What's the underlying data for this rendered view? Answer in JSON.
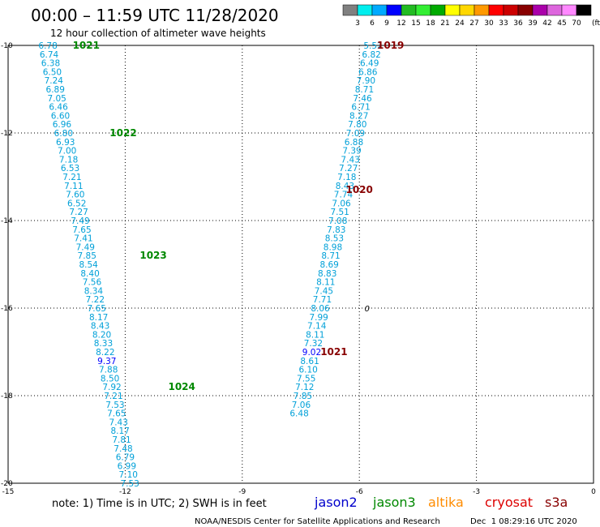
{
  "chart_data": {
    "type": "scatter",
    "title": "00:00 – 11:59 UTC 11/28/2020",
    "subtitle": "12 hour collection of altimeter wave heights",
    "xlim": [
      -15,
      0
    ],
    "ylim": [
      -20,
      -10
    ],
    "xticks": [
      -15,
      -12,
      -9,
      -6,
      -3,
      0
    ],
    "xtick_labels": [
      "-15",
      "-12",
      "-9",
      "-6",
      "-3",
      "0"
    ],
    "yticks": [
      -10,
      -12,
      -14,
      -16,
      -18,
      -20
    ],
    "ytick_labels": [
      "-10",
      "-12",
      "-14",
      "-16",
      "-18",
      "-20"
    ],
    "grid": true,
    "colorbar": {
      "ticks": [
        "3",
        "6",
        "9",
        "12",
        "15",
        "18",
        "21",
        "24",
        "27",
        "30",
        "33",
        "36",
        "39",
        "42",
        "45",
        "70"
      ],
      "unit": "(ft)",
      "colors": [
        "#808080",
        "#00eeee",
        "#00aaff",
        "#0000ff",
        "#22bb22",
        "#33ee33",
        "#00aa00",
        "#ffff00",
        "#ffd700",
        "#ff9900",
        "#ff0000",
        "#cc0000",
        "#880000",
        "#aa00aa",
        "#dd66dd",
        "#ff88ff",
        "#000000"
      ]
    },
    "legend": [
      {
        "name": "jason2",
        "color": "#0000cc"
      },
      {
        "name": "jason3",
        "color": "#008800"
      },
      {
        "name": "altika",
        "color": "#ff8c00"
      },
      {
        "name": "cryosat",
        "color": "#dd0000"
      },
      {
        "name": "s3a",
        "color": "#880000"
      }
    ],
    "note": "note: 1) Time is in UTC; 2) SWH is in feet",
    "credit": "NOAA/NESDIS Center for Satellite Applications and Research",
    "timestamp": "Dec  1 08:29:16 UTC 2020",
    "series": [
      {
        "name": "jason3",
        "color": "#008800",
        "points": [
          {
            "x": -13.98,
            "y": -10.0,
            "label": "6.78"
          },
          {
            "x": -13.95,
            "y": -10.2,
            "label": "6.74"
          },
          {
            "x": -13.91,
            "y": -10.4,
            "label": "6.38"
          },
          {
            "x": -13.87,
            "y": -10.6,
            "label": "6.50"
          },
          {
            "x": -13.83,
            "y": -10.8,
            "label": "7.24"
          },
          {
            "x": -13.79,
            "y": -11.0,
            "label": "6.89"
          },
          {
            "x": -13.75,
            "y": -11.2,
            "label": "7.05"
          },
          {
            "x": -13.71,
            "y": -11.4,
            "label": "6.46"
          },
          {
            "x": -13.66,
            "y": -11.6,
            "label": "6.60"
          },
          {
            "x": -13.62,
            "y": -11.8,
            "label": "6.96"
          },
          {
            "x": -13.58,
            "y": -12.0,
            "label": "6.80"
          },
          {
            "x": -13.53,
            "y": -12.2,
            "label": "6.93"
          },
          {
            "x": -13.49,
            "y": -12.4,
            "label": "7.00"
          },
          {
            "x": -13.45,
            "y": -12.6,
            "label": "7.18"
          },
          {
            "x": -13.41,
            "y": -12.8,
            "label": "6.53"
          },
          {
            "x": -13.36,
            "y": -13.0,
            "label": "7.21"
          },
          {
            "x": -13.32,
            "y": -13.2,
            "label": "7.11"
          },
          {
            "x": -13.28,
            "y": -13.4,
            "label": "7.60"
          },
          {
            "x": -13.24,
            "y": -13.6,
            "label": "6.52"
          },
          {
            "x": -13.19,
            "y": -13.8,
            "label": "7.27"
          },
          {
            "x": -13.15,
            "y": -14.0,
            "label": "7.49"
          },
          {
            "x": -13.11,
            "y": -14.2,
            "label": "7.65"
          },
          {
            "x": -13.07,
            "y": -14.4,
            "label": "7.41"
          },
          {
            "x": -13.02,
            "y": -14.6,
            "label": "7.49"
          },
          {
            "x": -12.98,
            "y": -14.8,
            "label": "7.85"
          },
          {
            "x": -12.94,
            "y": -15.0,
            "label": "8.54"
          },
          {
            "x": -12.9,
            "y": -15.2,
            "label": "8.40"
          },
          {
            "x": -12.85,
            "y": -15.4,
            "label": "7.56"
          },
          {
            "x": -12.81,
            "y": -15.6,
            "label": "8.34"
          },
          {
            "x": -12.77,
            "y": -15.8,
            "label": "7.22"
          },
          {
            "x": -12.73,
            "y": -16.0,
            "label": "7.65"
          },
          {
            "x": -12.68,
            "y": -16.2,
            "label": "8.17"
          },
          {
            "x": -12.64,
            "y": -16.4,
            "label": "8.43"
          },
          {
            "x": -12.6,
            "y": -16.6,
            "label": "8.20"
          },
          {
            "x": -12.56,
            "y": -16.8,
            "label": "8.33"
          },
          {
            "x": -12.51,
            "y": -17.0,
            "label": "8.22"
          },
          {
            "x": -12.47,
            "y": -17.2,
            "label": "9.37",
            "color": "#0000ff"
          },
          {
            "x": -12.43,
            "y": -17.4,
            "label": "7.88"
          },
          {
            "x": -12.39,
            "y": -17.6,
            "label": "8.50"
          },
          {
            "x": -12.34,
            "y": -17.8,
            "label": "7.92"
          },
          {
            "x": -12.3,
            "y": -18.0,
            "label": "7.21"
          },
          {
            "x": -12.26,
            "y": -18.2,
            "label": "7.53"
          },
          {
            "x": -12.22,
            "y": -18.4,
            "label": "7.65"
          },
          {
            "x": -12.17,
            "y": -18.6,
            "label": "7.43"
          },
          {
            "x": -12.13,
            "y": -18.8,
            "label": "8.17"
          },
          {
            "x": -12.09,
            "y": -19.0,
            "label": "7.81"
          },
          {
            "x": -12.05,
            "y": -19.2,
            "label": "7.48"
          },
          {
            "x": -12.0,
            "y": -19.4,
            "label": "6.79"
          },
          {
            "x": -11.96,
            "y": -19.6,
            "label": "6.99"
          },
          {
            "x": -11.92,
            "y": -19.8,
            "label": "7.10"
          },
          {
            "x": -11.88,
            "y": -20.0,
            "label": "7.53"
          }
        ],
        "pressure_labels": [
          {
            "x": -13.0,
            "y": -10.0,
            "label": "1021"
          },
          {
            "x": -12.05,
            "y": -12.0,
            "label": "1022"
          },
          {
            "x": -11.28,
            "y": -14.8,
            "label": "1023"
          },
          {
            "x": -10.55,
            "y": -17.8,
            "label": "1024"
          }
        ]
      },
      {
        "name": "s3a",
        "color": "#880000",
        "points": [
          {
            "x": -5.65,
            "y": -10.0,
            "label": "5.52"
          },
          {
            "x": -5.69,
            "y": -10.2,
            "label": "6.82"
          },
          {
            "x": -5.74,
            "y": -10.4,
            "label": "6.49"
          },
          {
            "x": -5.78,
            "y": -10.6,
            "label": "6.86"
          },
          {
            "x": -5.83,
            "y": -10.8,
            "label": "7.90"
          },
          {
            "x": -5.87,
            "y": -11.0,
            "label": "8.71"
          },
          {
            "x": -5.92,
            "y": -11.2,
            "label": "7.46"
          },
          {
            "x": -5.96,
            "y": -11.4,
            "label": "6.71"
          },
          {
            "x": -6.01,
            "y": -11.6,
            "label": "8.27"
          },
          {
            "x": -6.05,
            "y": -11.8,
            "label": "7.80"
          },
          {
            "x": -6.1,
            "y": -12.0,
            "label": "7.09"
          },
          {
            "x": -6.14,
            "y": -12.2,
            "label": "6.88"
          },
          {
            "x": -6.19,
            "y": -12.4,
            "label": "7.39"
          },
          {
            "x": -6.23,
            "y": -12.6,
            "label": "7.43"
          },
          {
            "x": -6.28,
            "y": -12.8,
            "label": "7.27"
          },
          {
            "x": -6.32,
            "y": -13.0,
            "label": "7.18"
          },
          {
            "x": -6.37,
            "y": -13.2,
            "label": "8.43"
          },
          {
            "x": -6.41,
            "y": -13.4,
            "label": "7.74"
          },
          {
            "x": -6.46,
            "y": -13.6,
            "label": "7.06"
          },
          {
            "x": -6.5,
            "y": -13.8,
            "label": "7.51"
          },
          {
            "x": -6.55,
            "y": -14.0,
            "label": "7.08"
          },
          {
            "x": -6.59,
            "y": -14.2,
            "label": "7.83"
          },
          {
            "x": -6.64,
            "y": -14.4,
            "label": "8.53"
          },
          {
            "x": -6.68,
            "y": -14.6,
            "label": "8.98"
          },
          {
            "x": -6.73,
            "y": -14.8,
            "label": "8.71"
          },
          {
            "x": -6.77,
            "y": -15.0,
            "label": "8.69"
          },
          {
            "x": -6.82,
            "y": -15.2,
            "label": "8.83"
          },
          {
            "x": -6.86,
            "y": -15.4,
            "label": "8.11"
          },
          {
            "x": -6.91,
            "y": -15.6,
            "label": "7.45"
          },
          {
            "x": -6.95,
            "y": -15.8,
            "label": "7.71"
          },
          {
            "x": -7.0,
            "y": -16.0,
            "label": "8.06"
          },
          {
            "x": -7.04,
            "y": -16.2,
            "label": "7.99"
          },
          {
            "x": -7.09,
            "y": -16.4,
            "label": "7.14"
          },
          {
            "x": -7.13,
            "y": -16.6,
            "label": "8.11"
          },
          {
            "x": -7.18,
            "y": -16.8,
            "label": "7.32"
          },
          {
            "x": -7.22,
            "y": -17.0,
            "label": "9.02",
            "color": "#0000ff"
          },
          {
            "x": -7.27,
            "y": -17.2,
            "label": "8.61"
          },
          {
            "x": -7.31,
            "y": -17.4,
            "label": "6.10"
          },
          {
            "x": -7.36,
            "y": -17.6,
            "label": "7.55"
          },
          {
            "x": -7.4,
            "y": -17.8,
            "label": "7.12"
          },
          {
            "x": -7.45,
            "y": -18.0,
            "label": "7.85"
          },
          {
            "x": -7.49,
            "y": -18.2,
            "label": "7.06"
          },
          {
            "x": -7.54,
            "y": -18.4,
            "label": "6.48"
          }
        ],
        "pressure_labels": [
          {
            "x": -5.2,
            "y": -10.0,
            "label": "1019"
          },
          {
            "x": -6.0,
            "y": -13.3,
            "label": "1020"
          },
          {
            "x": -6.65,
            "y": -17.0,
            "label": "1021"
          }
        ]
      }
    ],
    "annotations": [
      {
        "x": -5.8,
        "y": -16.0,
        "label": "0"
      }
    ]
  }
}
